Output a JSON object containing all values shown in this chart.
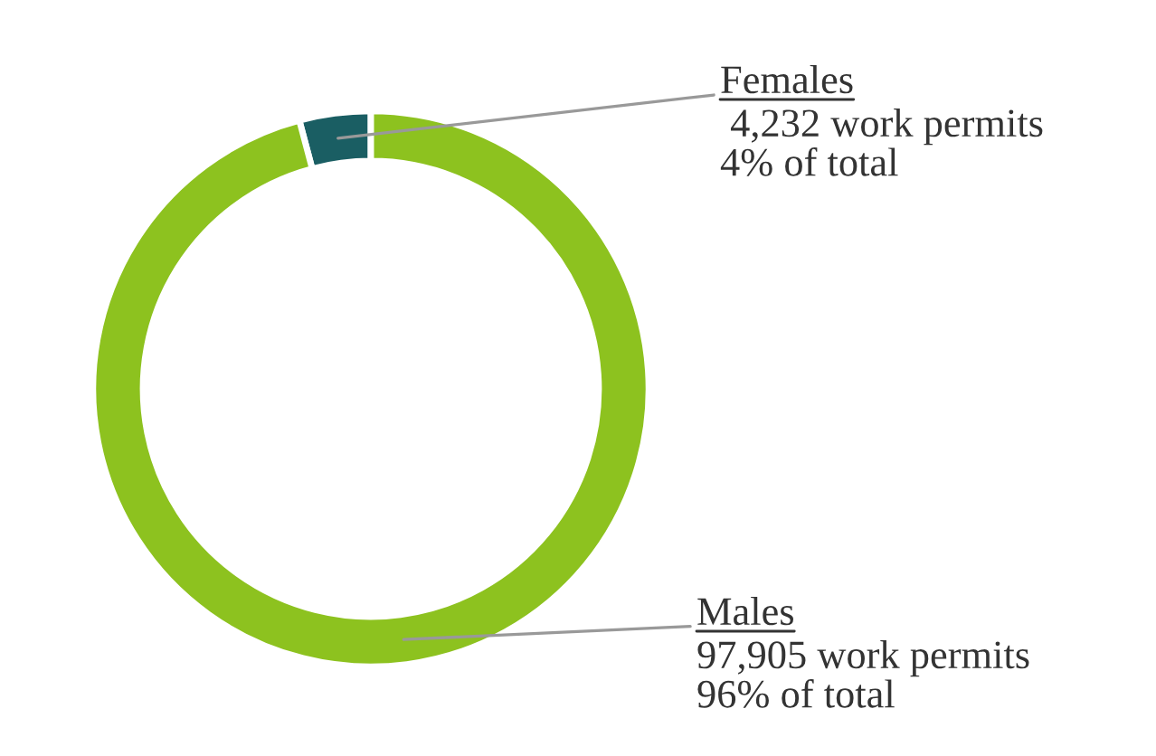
{
  "chart_data": {
    "type": "donut",
    "categories": [
      "Females",
      "Males"
    ],
    "values": [
      4232,
      97905
    ],
    "colors": [
      "#1a5e63",
      "#8dc21f"
    ],
    "value_labels": [
      " 4,232 work permits\n4% of total",
      "97,905 work permits\n96% of total"
    ],
    "legend": false
  }
}
